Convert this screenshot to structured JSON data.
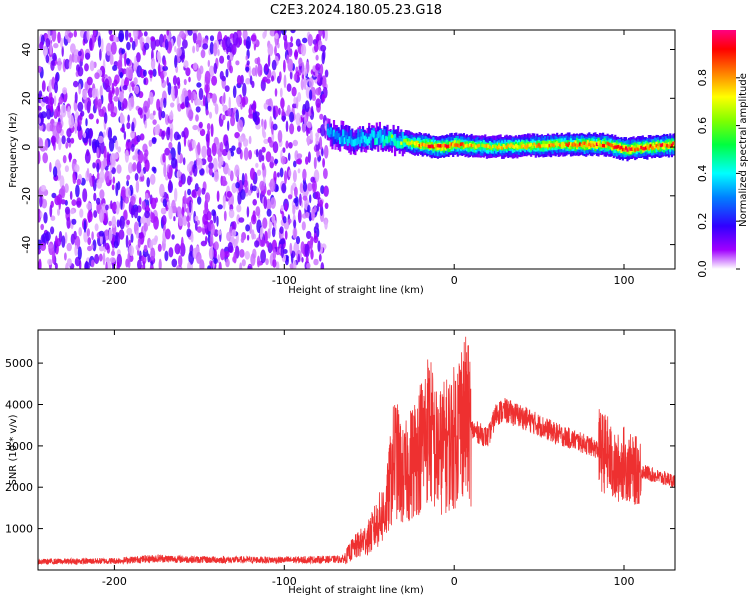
{
  "title": "C2E3.2024.180.05.23.G18",
  "chart_data": [
    {
      "type": "heatmap",
      "xlabel": "Height of straight line (km)",
      "ylabel": "Frequency (Hz)",
      "xlim": [
        -245,
        130
      ],
      "ylim": [
        -50,
        48
      ],
      "xticks": [
        -200,
        -100,
        0,
        100
      ],
      "yticks": [
        -40,
        -20,
        0,
        20,
        40
      ],
      "colorbar": {
        "label": "Normalized spectral amplitude",
        "range": [
          0,
          1
        ],
        "ticks": [
          0.0,
          0.2,
          0.4,
          0.6,
          0.8
        ],
        "colormap": [
          "#ffffff",
          "#a000ff",
          "#3000ff",
          "#0080ff",
          "#00ffff",
          "#00ff40",
          "#80ff00",
          "#ffff00",
          "#ff8000",
          "#ff0000",
          "#ff0080"
        ]
      },
      "noise_region_x": [
        -245,
        -75
      ],
      "signal_band": {
        "x": [
          -75,
          -60,
          -45,
          -30,
          -20,
          -10,
          0,
          20,
          40,
          60,
          80,
          90,
          100,
          130
        ],
        "frequency_center": [
          6,
          3,
          4,
          2,
          1,
          0,
          1,
          0,
          0.5,
          1,
          1,
          1,
          -1,
          1
        ],
        "peak_amplitude": [
          0.45,
          0.5,
          0.55,
          0.65,
          0.85,
          0.9,
          0.85,
          0.7,
          0.75,
          0.8,
          0.9,
          0.85,
          0.9,
          0.85
        ]
      }
    },
    {
      "type": "line",
      "xlabel": "Height of straight line (km)",
      "ylabel": "SNR (10 * v/v)",
      "xlim": [
        -245,
        130
      ],
      "ylim": [
        0,
        5800
      ],
      "xticks": [
        -200,
        -100,
        0,
        100
      ],
      "yticks": [
        1000,
        2000,
        3000,
        4000,
        5000
      ],
      "series": [
        {
          "color": "#ee3030",
          "x": [
            -245,
            -200,
            -175,
            -150,
            -100,
            -65,
            -60,
            -50,
            -40,
            -35,
            -30,
            -25,
            -20,
            -15,
            -10,
            0,
            5,
            10,
            20,
            25,
            30,
            40,
            50,
            60,
            70,
            80,
            90,
            95,
            100,
            105,
            110,
            120,
            130
          ],
          "y": [
            200,
            220,
            280,
            250,
            240,
            260,
            500,
            800,
            1500,
            2800,
            2200,
            2600,
            3000,
            3500,
            2800,
            3200,
            3800,
            3400,
            3200,
            3800,
            3850,
            3700,
            3500,
            3300,
            3150,
            3000,
            2800,
            2400,
            2600,
            2400,
            2400,
            2250,
            2150
          ]
        }
      ]
    }
  ]
}
